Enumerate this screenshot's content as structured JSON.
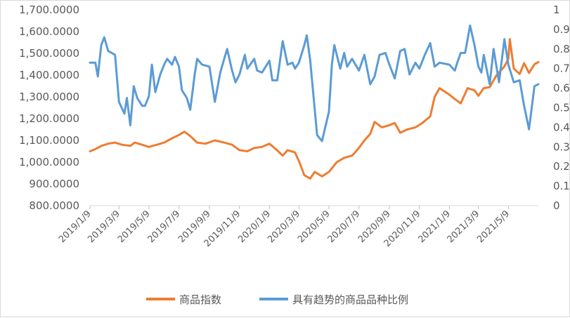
{
  "chart_data": {
    "type": "line",
    "title": "",
    "legend_position": "bottom",
    "grid": false,
    "y_left": {
      "min": 800,
      "max": 1700,
      "ticks": [
        "800.0000",
        "900.0000",
        "1,000.0000",
        "1,100.0000",
        "1,200.0000",
        "1,300.0000",
        "1,400.0000",
        "1,500.0000",
        "1,600.0000",
        "1,700.0000"
      ]
    },
    "y_right": {
      "min": 0,
      "max": 1,
      "ticks": [
        "0",
        "0.1",
        "0.2",
        "0.3",
        "0.4",
        "0.5",
        "0.6",
        "0.7",
        "0.8",
        "0.9",
        "1"
      ]
    },
    "x_range": [
      "2019-01-09",
      "2021-07-09"
    ],
    "x_ticks": [
      "2019/1/9",
      "2019/3/9",
      "2019/5/9",
      "2019/7/9",
      "2019/9/9",
      "2019/11/9",
      "2020/1/9",
      "2020/3/9",
      "2020/5/9",
      "2020/7/9",
      "2020/9/9",
      "2020/11/9",
      "2021/1/9",
      "2021/3/9",
      "2021/5/9"
    ],
    "series": [
      {
        "name": "商品指数",
        "axis": "left",
        "color": "#ED7D31",
        "points": [
          [
            "2019-01-09",
            1050
          ],
          [
            "2019-01-20",
            1060
          ],
          [
            "2019-02-01",
            1075
          ],
          [
            "2019-02-15",
            1085
          ],
          [
            "2019-03-01",
            1090
          ],
          [
            "2019-03-15",
            1080
          ],
          [
            "2019-04-01",
            1075
          ],
          [
            "2019-04-10",
            1090
          ],
          [
            "2019-04-25",
            1080
          ],
          [
            "2019-05-09",
            1070
          ],
          [
            "2019-05-25",
            1080
          ],
          [
            "2019-06-09",
            1090
          ],
          [
            "2019-06-25",
            1110
          ],
          [
            "2019-07-09",
            1125
          ],
          [
            "2019-07-20",
            1140
          ],
          [
            "2019-08-01",
            1120
          ],
          [
            "2019-08-15",
            1090
          ],
          [
            "2019-09-01",
            1085
          ],
          [
            "2019-09-20",
            1100
          ],
          [
            "2019-10-09",
            1090
          ],
          [
            "2019-10-25",
            1080
          ],
          [
            "2019-11-09",
            1055
          ],
          [
            "2019-11-25",
            1050
          ],
          [
            "2019-12-09",
            1065
          ],
          [
            "2019-12-25",
            1070
          ],
          [
            "2020-01-09",
            1085
          ],
          [
            "2020-01-22",
            1060
          ],
          [
            "2020-02-05",
            1030
          ],
          [
            "2020-02-15",
            1055
          ],
          [
            "2020-03-01",
            1045
          ],
          [
            "2020-03-10",
            1000
          ],
          [
            "2020-03-20",
            940
          ],
          [
            "2020-04-01",
            925
          ],
          [
            "2020-04-10",
            955
          ],
          [
            "2020-04-25",
            935
          ],
          [
            "2020-05-09",
            955
          ],
          [
            "2020-05-25",
            1000
          ],
          [
            "2020-06-09",
            1020
          ],
          [
            "2020-06-25",
            1030
          ],
          [
            "2020-07-09",
            1065
          ],
          [
            "2020-07-20",
            1100
          ],
          [
            "2020-08-01",
            1130
          ],
          [
            "2020-08-10",
            1185
          ],
          [
            "2020-08-25",
            1160
          ],
          [
            "2020-09-09",
            1170
          ],
          [
            "2020-09-20",
            1180
          ],
          [
            "2020-10-01",
            1135
          ],
          [
            "2020-10-15",
            1150
          ],
          [
            "2020-11-01",
            1160
          ],
          [
            "2020-11-15",
            1180
          ],
          [
            "2020-12-01",
            1210
          ],
          [
            "2020-12-10",
            1300
          ],
          [
            "2020-12-20",
            1340
          ],
          [
            "2021-01-09",
            1310
          ],
          [
            "2021-01-20",
            1290
          ],
          [
            "2021-02-01",
            1270
          ],
          [
            "2021-02-15",
            1340
          ],
          [
            "2021-03-01",
            1330
          ],
          [
            "2021-03-09",
            1305
          ],
          [
            "2021-03-20",
            1340
          ],
          [
            "2021-04-01",
            1345
          ],
          [
            "2021-04-15",
            1400
          ],
          [
            "2021-05-01",
            1440
          ],
          [
            "2021-05-09",
            1475
          ],
          [
            "2021-05-12",
            1565
          ],
          [
            "2021-05-20",
            1430
          ],
          [
            "2021-06-01",
            1405
          ],
          [
            "2021-06-10",
            1455
          ],
          [
            "2021-06-20",
            1410
          ],
          [
            "2021-07-01",
            1450
          ],
          [
            "2021-07-09",
            1460
          ]
        ]
      },
      {
        "name": "具有趋势的商品品种比例",
        "axis": "right",
        "color": "#5B9BD5",
        "points": [
          [
            "2019-01-09",
            0.73
          ],
          [
            "2019-01-20",
            0.73
          ],
          [
            "2019-01-25",
            0.66
          ],
          [
            "2019-02-01",
            0.82
          ],
          [
            "2019-02-07",
            0.86
          ],
          [
            "2019-02-15",
            0.79
          ],
          [
            "2019-03-01",
            0.77
          ],
          [
            "2019-03-09",
            0.53
          ],
          [
            "2019-03-20",
            0.47
          ],
          [
            "2019-03-25",
            0.55
          ],
          [
            "2019-04-01",
            0.41
          ],
          [
            "2019-04-08",
            0.61
          ],
          [
            "2019-04-15",
            0.55
          ],
          [
            "2019-04-25",
            0.51
          ],
          [
            "2019-05-01",
            0.51
          ],
          [
            "2019-05-09",
            0.56
          ],
          [
            "2019-05-15",
            0.72
          ],
          [
            "2019-05-22",
            0.58
          ],
          [
            "2019-06-01",
            0.67
          ],
          [
            "2019-06-09",
            0.72
          ],
          [
            "2019-06-15",
            0.75
          ],
          [
            "2019-06-25",
            0.72
          ],
          [
            "2019-07-01",
            0.76
          ],
          [
            "2019-07-09",
            0.71
          ],
          [
            "2019-07-15",
            0.59
          ],
          [
            "2019-07-25",
            0.55
          ],
          [
            "2019-08-01",
            0.49
          ],
          [
            "2019-08-10",
            0.67
          ],
          [
            "2019-08-15",
            0.75
          ],
          [
            "2019-08-25",
            0.72
          ],
          [
            "2019-09-09",
            0.71
          ],
          [
            "2019-09-20",
            0.53
          ],
          [
            "2019-10-01",
            0.68
          ],
          [
            "2019-10-09",
            0.75
          ],
          [
            "2019-10-15",
            0.8
          ],
          [
            "2019-10-25",
            0.69
          ],
          [
            "2019-11-01",
            0.63
          ],
          [
            "2019-11-09",
            0.67
          ],
          [
            "2019-11-20",
            0.77
          ],
          [
            "2019-11-25",
            0.7
          ],
          [
            "2019-12-09",
            0.75
          ],
          [
            "2019-12-15",
            0.69
          ],
          [
            "2019-12-25",
            0.68
          ],
          [
            "2020-01-09",
            0.74
          ],
          [
            "2020-01-15",
            0.64
          ],
          [
            "2020-01-25",
            0.64
          ],
          [
            "2020-02-05",
            0.84
          ],
          [
            "2020-02-15",
            0.72
          ],
          [
            "2020-02-25",
            0.73
          ],
          [
            "2020-03-01",
            0.7
          ],
          [
            "2020-03-09",
            0.73
          ],
          [
            "2020-03-20",
            0.82
          ],
          [
            "2020-03-25",
            0.87
          ],
          [
            "2020-04-01",
            0.74
          ],
          [
            "2020-04-15",
            0.36
          ],
          [
            "2020-04-25",
            0.33
          ],
          [
            "2020-05-09",
            0.48
          ],
          [
            "2020-05-15",
            0.72
          ],
          [
            "2020-05-20",
            0.82
          ],
          [
            "2020-06-01",
            0.7
          ],
          [
            "2020-06-09",
            0.78
          ],
          [
            "2020-06-15",
            0.71
          ],
          [
            "2020-06-25",
            0.75
          ],
          [
            "2020-07-09",
            0.69
          ],
          [
            "2020-07-20",
            0.77
          ],
          [
            "2020-08-01",
            0.62
          ],
          [
            "2020-08-10",
            0.66
          ],
          [
            "2020-08-20",
            0.77
          ],
          [
            "2020-09-01",
            0.78
          ],
          [
            "2020-09-09",
            0.72
          ],
          [
            "2020-09-20",
            0.65
          ],
          [
            "2020-10-01",
            0.79
          ],
          [
            "2020-10-10",
            0.8
          ],
          [
            "2020-10-20",
            0.67
          ],
          [
            "2020-11-01",
            0.73
          ],
          [
            "2020-11-09",
            0.7
          ],
          [
            "2020-11-20",
            0.77
          ],
          [
            "2020-12-01",
            0.83
          ],
          [
            "2020-12-10",
            0.71
          ],
          [
            "2020-12-20",
            0.73
          ],
          [
            "2021-01-09",
            0.72
          ],
          [
            "2021-01-20",
            0.69
          ],
          [
            "2021-01-25",
            0.73
          ],
          [
            "2021-02-01",
            0.78
          ],
          [
            "2021-02-10",
            0.78
          ],
          [
            "2021-02-20",
            0.92
          ],
          [
            "2021-03-01",
            0.82
          ],
          [
            "2021-03-09",
            0.71
          ],
          [
            "2021-03-15",
            0.68
          ],
          [
            "2021-03-20",
            0.77
          ],
          [
            "2021-04-01",
            0.62
          ],
          [
            "2021-04-09",
            0.8
          ],
          [
            "2021-04-20",
            0.63
          ],
          [
            "2021-05-01",
            0.85
          ],
          [
            "2021-05-09",
            0.72
          ],
          [
            "2021-05-20",
            0.63
          ],
          [
            "2021-06-01",
            0.64
          ],
          [
            "2021-06-10",
            0.51
          ],
          [
            "2021-06-20",
            0.39
          ],
          [
            "2021-07-01",
            0.61
          ],
          [
            "2021-07-09",
            0.62
          ]
        ]
      }
    ]
  }
}
